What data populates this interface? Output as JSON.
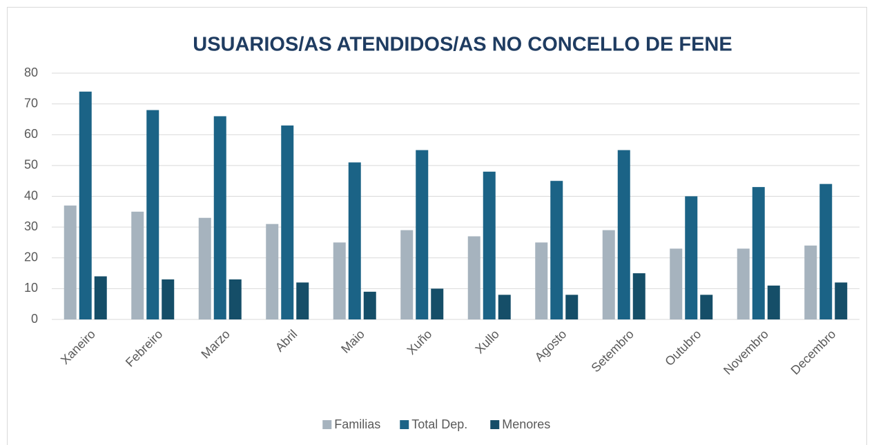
{
  "chart_data": {
    "type": "bar",
    "title": "USUARIOS/AS ATENDIDOS/AS NO CONCELLO DE FENE",
    "categories": [
      "Xaneiro",
      "Febreiro",
      "Marzo",
      "Abril",
      "Maio",
      "Xuño",
      "Xullo",
      "Agosto",
      "Setembro",
      "Outubro",
      "Novembro",
      "Decembro"
    ],
    "series": [
      {
        "name": "Familias",
        "color": "#a6b3be",
        "values": [
          37,
          35,
          33,
          31,
          25,
          29,
          27,
          25,
          29,
          23,
          23,
          24
        ]
      },
      {
        "name": "Total Dep.",
        "color": "#1b6386",
        "values": [
          74,
          68,
          66,
          63,
          51,
          55,
          48,
          45,
          55,
          40,
          43,
          44
        ]
      },
      {
        "name": "Menores",
        "color": "#154e68",
        "values": [
          14,
          13,
          13,
          12,
          9,
          10,
          8,
          8,
          15,
          8,
          11,
          12
        ]
      }
    ],
    "ylim": [
      0,
      80
    ],
    "yticks": [
      0,
      10,
      20,
      30,
      40,
      50,
      60,
      70,
      80
    ],
    "grid": true,
    "legend": "bottom"
  }
}
